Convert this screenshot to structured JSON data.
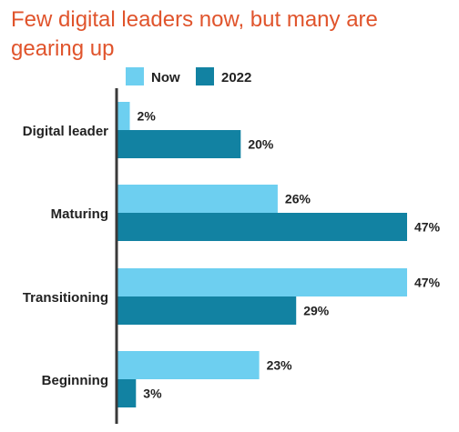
{
  "colors": {
    "title": "#e0542c",
    "now": "#6dcff0",
    "y2022": "#1282a2",
    "axis": "#3a3a3a",
    "text": "#222222"
  },
  "chart_data": {
    "type": "bar",
    "orientation": "horizontal",
    "title": "Few digital leaders now, but many are gearing up",
    "categories": [
      "Digital leader",
      "Maturing",
      "Transitioning",
      "Beginning"
    ],
    "series": [
      {
        "name": "Now",
        "values": [
          2,
          26,
          47,
          23
        ],
        "color": "#6dcff0"
      },
      {
        "name": "2022",
        "values": [
          20,
          47,
          29,
          3
        ],
        "color": "#1282a2"
      }
    ],
    "value_suffix": "%",
    "xlim": [
      0,
      47
    ],
    "legend_position": "top",
    "grid": false
  }
}
